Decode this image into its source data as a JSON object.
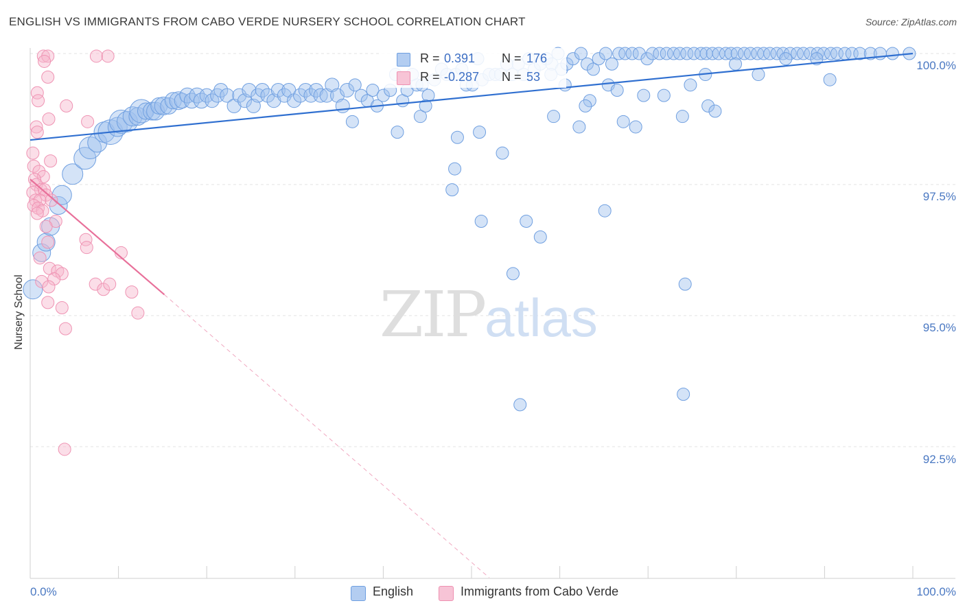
{
  "chart_data": {
    "type": "scatter",
    "title": "ENGLISH VS IMMIGRANTS FROM CABO VERDE NURSERY SCHOOL CORRELATION CHART",
    "source": "Source: ZipAtlas.com",
    "xlabel": "",
    "ylabel": "Nursery School",
    "xlim": [
      0,
      100
    ],
    "ylim": [
      90.0,
      100.25
    ],
    "x_ticks": [
      "0.0%",
      "100.0%"
    ],
    "y_ticks": [
      {
        "value": 100.0,
        "label": "100.0%"
      },
      {
        "value": 97.5,
        "label": "97.5%"
      },
      {
        "value": 95.0,
        "label": "95.0%"
      },
      {
        "value": 92.5,
        "label": "92.5%"
      }
    ],
    "watermark": {
      "zip": "ZIP",
      "atlas": "atlas"
    },
    "legend": {
      "r_label": "R =",
      "n_label": "N =",
      "entries": [
        {
          "name": "English",
          "r": "0.391",
          "n": "176",
          "color": "#a9c6ef",
          "edge": "#6d9ee0"
        },
        {
          "name": "Immigrants from Cabo Verde",
          "r": "-0.287",
          "n": "53",
          "color": "#f6bdd0",
          "edge": "#ee8fb0"
        }
      ]
    },
    "series": [
      {
        "name": "English",
        "trend": {
          "x0": 0.0,
          "y0": 98.35,
          "x1": 100.0,
          "y1": 100.0,
          "color": "#2f6fd0"
        },
        "points": [
          [
            0.3,
            95.5,
            14
          ],
          [
            1.3,
            96.2,
            13
          ],
          [
            1.8,
            96.4,
            13
          ],
          [
            2.3,
            96.7,
            13
          ],
          [
            3.2,
            97.1,
            13
          ],
          [
            3.6,
            97.3,
            14
          ],
          [
            4.8,
            97.7,
            15
          ],
          [
            6.2,
            98.0,
            16
          ],
          [
            6.8,
            98.2,
            16
          ],
          [
            7.6,
            98.3,
            14
          ],
          [
            8.4,
            98.5,
            15
          ],
          [
            9.1,
            98.5,
            18
          ],
          [
            9.9,
            98.6,
            14
          ],
          [
            10.3,
            98.7,
            17
          ],
          [
            11.0,
            98.7,
            15
          ],
          [
            11.6,
            98.8,
            14
          ],
          [
            12.2,
            98.8,
            13
          ],
          [
            12.6,
            98.9,
            17
          ],
          [
            13.1,
            98.9,
            12
          ],
          [
            13.8,
            98.9,
            13
          ],
          [
            14.2,
            98.9,
            13
          ],
          [
            14.6,
            99.0,
            12
          ],
          [
            15.1,
            99.0,
            13
          ],
          [
            15.7,
            99.0,
            12
          ],
          [
            16.2,
            99.1,
            12
          ],
          [
            16.8,
            99.1,
            13
          ],
          [
            17.2,
            99.1,
            11
          ],
          [
            17.8,
            99.2,
            11
          ],
          [
            18.3,
            99.1,
            11
          ],
          [
            18.9,
            99.2,
            11
          ],
          [
            19.4,
            99.1,
            11
          ],
          [
            20.0,
            99.2,
            10
          ],
          [
            20.6,
            99.1,
            10
          ],
          [
            21.2,
            99.2,
            10
          ],
          [
            21.6,
            99.3,
            10
          ],
          [
            22.3,
            99.2,
            10
          ],
          [
            23.1,
            99.0,
            10
          ],
          [
            23.7,
            99.2,
            10
          ],
          [
            24.3,
            99.1,
            10
          ],
          [
            24.8,
            99.3,
            10
          ],
          [
            25.3,
            99.0,
            10
          ],
          [
            25.8,
            99.2,
            10
          ],
          [
            26.3,
            99.3,
            10
          ],
          [
            26.9,
            99.2,
            10
          ],
          [
            27.6,
            99.1,
            10
          ],
          [
            28.1,
            99.3,
            10
          ],
          [
            28.8,
            99.2,
            10
          ],
          [
            29.3,
            99.3,
            10
          ],
          [
            29.9,
            99.1,
            10
          ],
          [
            30.6,
            99.2,
            10
          ],
          [
            31.2,
            99.3,
            10
          ],
          [
            31.8,
            99.2,
            10
          ],
          [
            32.4,
            99.3,
            10
          ],
          [
            32.9,
            99.2,
            10
          ],
          [
            33.6,
            99.2,
            10
          ],
          [
            34.2,
            99.4,
            10
          ],
          [
            34.8,
            99.2,
            10
          ],
          [
            35.4,
            99.0,
            10
          ],
          [
            35.9,
            99.3,
            10
          ],
          [
            36.5,
            98.7,
            9
          ],
          [
            36.8,
            99.4,
            9
          ],
          [
            37.5,
            99.2,
            9
          ],
          [
            38.2,
            99.1,
            9
          ],
          [
            38.8,
            99.3,
            9
          ],
          [
            39.3,
            99.0,
            9
          ],
          [
            40.0,
            99.2,
            9
          ],
          [
            40.8,
            99.3,
            9
          ],
          [
            41.4,
            99.6,
            9
          ],
          [
            42.2,
            99.1,
            9
          ],
          [
            42.7,
            99.3,
            9
          ],
          [
            43.3,
            99.6,
            9
          ],
          [
            43.8,
            99.4,
            9
          ],
          [
            44.4,
            99.4,
            9
          ],
          [
            45.1,
            99.2,
            9
          ],
          [
            45.8,
            99.5,
            9
          ],
          [
            46.6,
            99.7,
            9
          ],
          [
            47.2,
            99.6,
            9
          ],
          [
            48.2,
            99.6,
            9
          ],
          [
            48.9,
            99.7,
            9
          ],
          [
            49.4,
            99.4,
            9
          ],
          [
            50.1,
            99.4,
            9
          ],
          [
            50.7,
            99.9,
            9
          ],
          [
            51.2,
            99.5,
            9
          ],
          [
            52.0,
            99.6,
            9
          ],
          [
            52.7,
            99.6,
            9
          ],
          [
            53.3,
            99.6,
            9
          ],
          [
            54.0,
            99.8,
            9
          ],
          [
            54.6,
            99.6,
            9
          ],
          [
            55.3,
            99.8,
            9
          ],
          [
            55.9,
            99.6,
            9
          ],
          [
            56.5,
            99.9,
            9
          ],
          [
            57.1,
            99.7,
            9
          ],
          [
            57.8,
            99.8,
            9
          ],
          [
            58.5,
            99.9,
            9
          ],
          [
            59.1,
            99.8,
            9
          ],
          [
            59.8,
            100.0,
            9
          ],
          [
            60.2,
            99.7,
            9
          ],
          [
            60.8,
            99.8,
            9
          ],
          [
            61.5,
            99.9,
            9
          ],
          [
            62.4,
            100.0,
            9
          ],
          [
            63.1,
            99.8,
            9
          ],
          [
            63.8,
            99.7,
            9
          ],
          [
            64.4,
            99.9,
            9
          ],
          [
            65.2,
            100.0,
            9
          ],
          [
            65.9,
            99.8,
            9
          ],
          [
            66.7,
            100.0,
            9
          ],
          [
            67.4,
            100.0,
            9
          ],
          [
            68.2,
            100.0,
            9
          ],
          [
            69.0,
            100.0,
            9
          ],
          [
            69.9,
            99.9,
            9
          ],
          [
            70.5,
            100.0,
            9
          ],
          [
            71.3,
            100.0,
            9
          ],
          [
            72.1,
            100.0,
            9
          ],
          [
            72.9,
            100.0,
            9
          ],
          [
            73.6,
            100.0,
            9
          ],
          [
            74.4,
            100.0,
            9
          ],
          [
            75.2,
            100.0,
            9
          ],
          [
            76.0,
            100.0,
            9
          ],
          [
            76.6,
            100.0,
            9
          ],
          [
            77.3,
            100.0,
            9
          ],
          [
            78.0,
            100.0,
            9
          ],
          [
            78.8,
            100.0,
            9
          ],
          [
            79.4,
            100.0,
            9
          ],
          [
            80.1,
            100.0,
            9
          ],
          [
            80.9,
            100.0,
            9
          ],
          [
            81.6,
            100.0,
            9
          ],
          [
            82.4,
            100.0,
            9
          ],
          [
            83.1,
            100.0,
            9
          ],
          [
            83.8,
            100.0,
            9
          ],
          [
            84.6,
            100.0,
            9
          ],
          [
            85.3,
            100.0,
            9
          ],
          [
            86.1,
            100.0,
            9
          ],
          [
            86.9,
            100.0,
            9
          ],
          [
            87.6,
            100.0,
            9
          ],
          [
            88.4,
            100.0,
            9
          ],
          [
            89.2,
            100.0,
            9
          ],
          [
            89.9,
            100.0,
            9
          ],
          [
            90.7,
            100.0,
            9
          ],
          [
            91.4,
            100.0,
            9
          ],
          [
            92.3,
            100.0,
            9
          ],
          [
            93.1,
            100.0,
            9
          ],
          [
            94.0,
            100.0,
            9
          ],
          [
            95.2,
            100.0,
            9
          ],
          [
            96.3,
            100.0,
            9
          ],
          [
            97.7,
            100.0,
            9
          ],
          [
            99.6,
            100.0,
            9
          ],
          [
            59.0,
            99.6,
            9
          ],
          [
            60.6,
            99.4,
            9
          ],
          [
            63.4,
            99.1,
            9
          ],
          [
            65.5,
            99.4,
            9
          ],
          [
            66.5,
            99.3,
            9
          ],
          [
            68.6,
            98.6,
            9
          ],
          [
            69.5,
            99.2,
            9
          ],
          [
            71.8,
            99.2,
            9
          ],
          [
            74.8,
            99.4,
            9
          ],
          [
            76.8,
            99.0,
            9
          ],
          [
            77.6,
            98.9,
            9
          ],
          [
            79.9,
            99.8,
            9
          ],
          [
            82.5,
            99.6,
            9
          ],
          [
            85.6,
            99.9,
            9
          ],
          [
            89.1,
            99.9,
            9
          ],
          [
            90.6,
            99.5,
            9
          ],
          [
            41.6,
            98.5,
            9
          ],
          [
            44.2,
            98.8,
            9
          ],
          [
            44.8,
            99.0,
            9
          ],
          [
            48.4,
            98.4,
            9
          ],
          [
            50.9,
            98.5,
            9
          ],
          [
            53.5,
            98.1,
            9
          ],
          [
            59.3,
            98.8,
            9
          ],
          [
            62.2,
            98.6,
            9
          ],
          [
            48.1,
            97.8,
            9
          ],
          [
            47.8,
            97.4,
            9
          ],
          [
            51.1,
            96.8,
            9
          ],
          [
            56.2,
            96.8,
            9
          ],
          [
            57.8,
            96.5,
            9
          ],
          [
            65.1,
            97.0,
            9
          ],
          [
            54.7,
            95.8,
            9
          ],
          [
            74.2,
            95.6,
            9
          ],
          [
            55.5,
            93.3,
            9
          ],
          [
            74.0,
            93.5,
            9
          ],
          [
            73.9,
            98.8,
            9
          ],
          [
            76.5,
            99.6,
            9
          ],
          [
            67.2,
            98.7,
            9
          ],
          [
            62.9,
            99.0,
            9
          ]
        ]
      },
      {
        "name": "Immigrants from Cabo Verde",
        "trend": {
          "x0": 0.0,
          "y0": 97.6,
          "x1": 15.2,
          "y1": 95.4,
          "dash_to": {
            "x": 52.0,
            "y": 90.0
          },
          "color": "#e8709a"
        },
        "points": [
          [
            1.5,
            99.95,
            9
          ],
          [
            2.0,
            99.95,
            9
          ],
          [
            7.5,
            99.95,
            9
          ],
          [
            8.8,
            99.95,
            9
          ],
          [
            1.6,
            99.85,
            9
          ],
          [
            2.0,
            99.55,
            9
          ],
          [
            0.8,
            99.25,
            9
          ],
          [
            0.9,
            99.1,
            9
          ],
          [
            4.1,
            99.0,
            9
          ],
          [
            2.1,
            98.75,
            9
          ],
          [
            6.5,
            98.7,
            9
          ],
          [
            0.7,
            98.6,
            9
          ],
          [
            0.8,
            98.5,
            9
          ],
          [
            0.3,
            98.1,
            9
          ],
          [
            2.3,
            97.95,
            9
          ],
          [
            0.4,
            97.85,
            9
          ],
          [
            1.0,
            97.75,
            9
          ],
          [
            1.5,
            97.65,
            9
          ],
          [
            0.5,
            97.6,
            9
          ],
          [
            0.7,
            97.5,
            9
          ],
          [
            1.2,
            97.4,
            9
          ],
          [
            1.6,
            97.4,
            9
          ],
          [
            0.3,
            97.35,
            9
          ],
          [
            1.8,
            97.3,
            9
          ],
          [
            0.6,
            97.2,
            9
          ],
          [
            1.1,
            97.2,
            9
          ],
          [
            2.4,
            97.2,
            9
          ],
          [
            0.4,
            97.1,
            9
          ],
          [
            0.9,
            97.05,
            9
          ],
          [
            1.4,
            97.0,
            9
          ],
          [
            0.8,
            96.95,
            9
          ],
          [
            2.9,
            96.8,
            9
          ],
          [
            1.8,
            96.7,
            9
          ],
          [
            6.3,
            96.45,
            9
          ],
          [
            2.0,
            96.4,
            9
          ],
          [
            6.4,
            96.3,
            9
          ],
          [
            10.3,
            96.2,
            9
          ],
          [
            1.1,
            96.1,
            9
          ],
          [
            2.2,
            95.9,
            9
          ],
          [
            3.1,
            95.85,
            9
          ],
          [
            3.6,
            95.8,
            9
          ],
          [
            2.7,
            95.7,
            9
          ],
          [
            1.3,
            95.65,
            9
          ],
          [
            7.4,
            95.6,
            9
          ],
          [
            2.1,
            95.55,
            9
          ],
          [
            8.3,
            95.5,
            9
          ],
          [
            11.5,
            95.45,
            9
          ],
          [
            2.0,
            95.25,
            9
          ],
          [
            3.6,
            95.15,
            9
          ],
          [
            12.2,
            95.05,
            9
          ],
          [
            4.0,
            94.75,
            9
          ],
          [
            3.9,
            92.45,
            9
          ],
          [
            9.0,
            95.6,
            9
          ]
        ]
      }
    ]
  }
}
